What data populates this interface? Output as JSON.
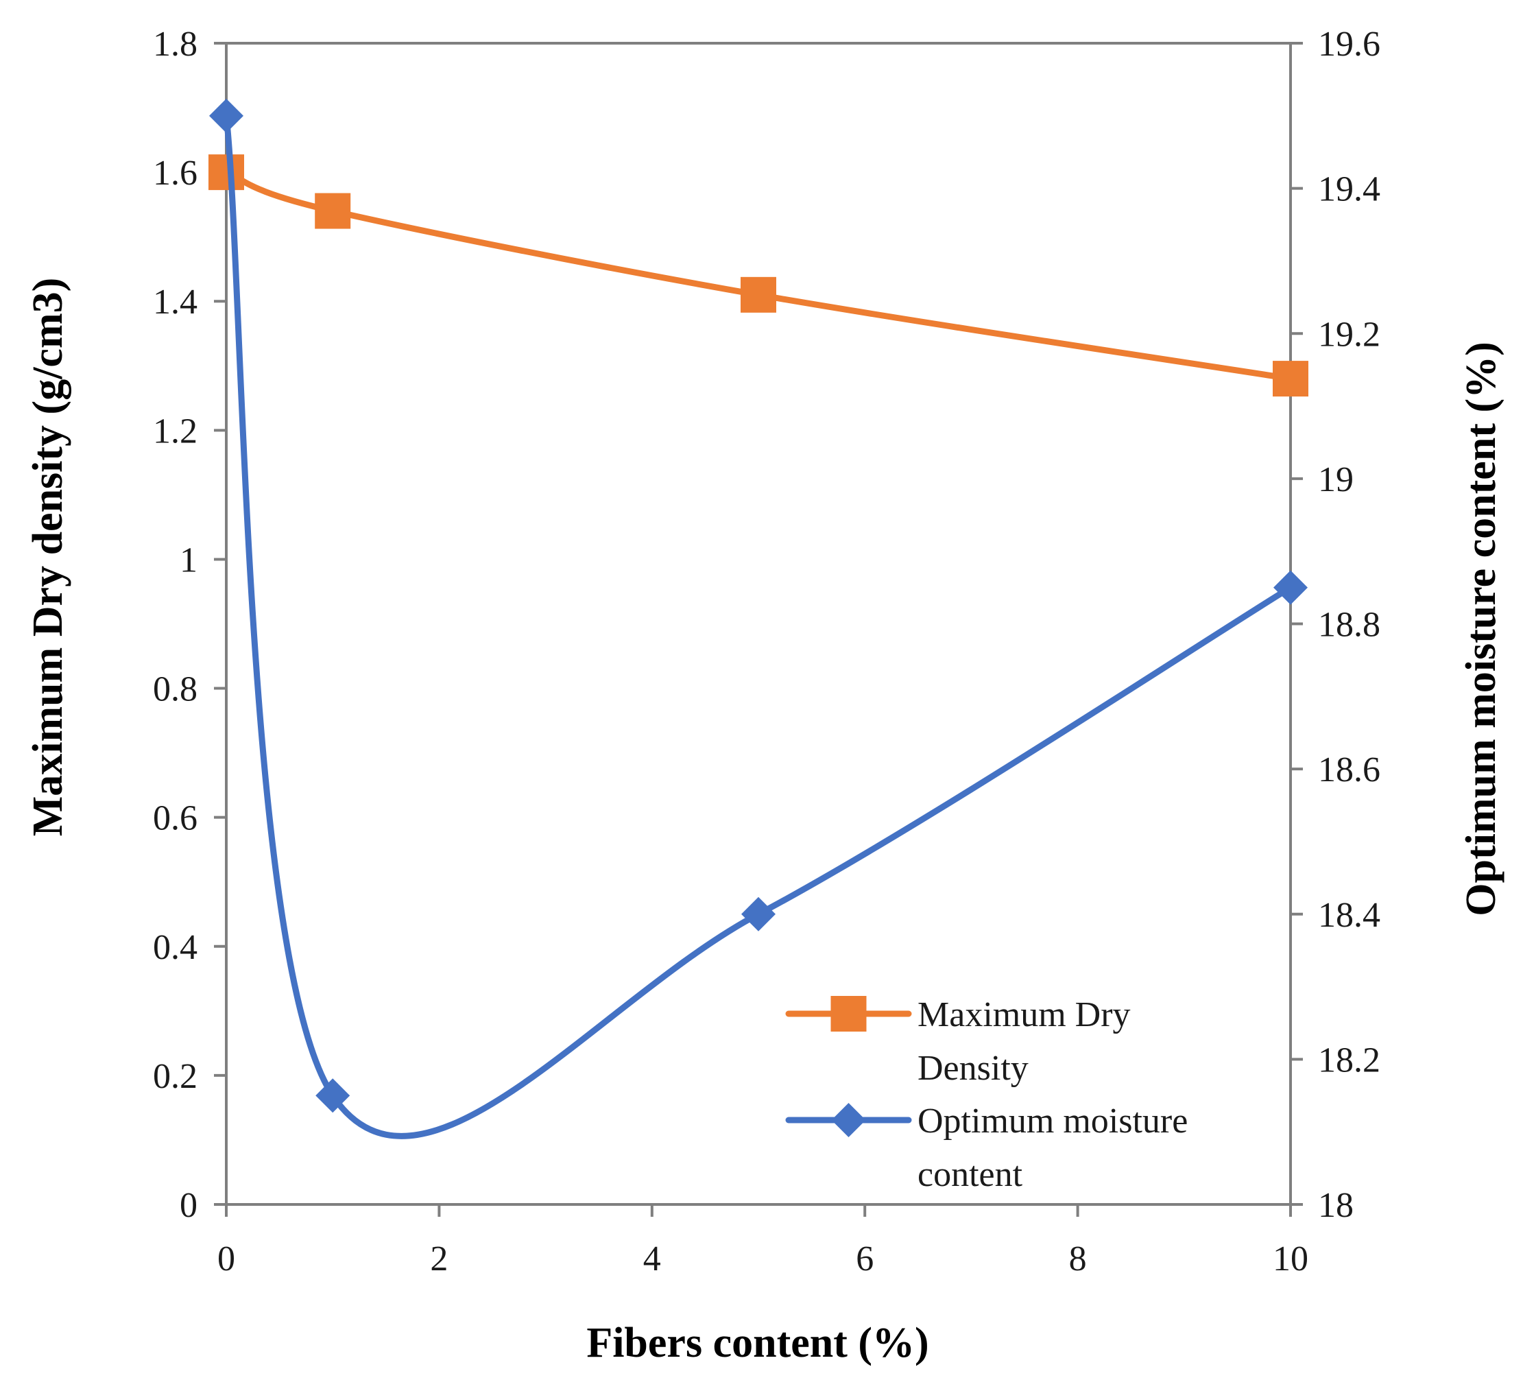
{
  "chart_data": {
    "type": "line",
    "title": "",
    "xlabel": "Fibers content (%)",
    "ylabel_left": "Maximum Dry density (g/cm3)",
    "ylabel_right": "Optimum moisture content (%)",
    "xlim": [
      0,
      10
    ],
    "ylim_left": [
      0,
      1.8
    ],
    "ylim_right": [
      18,
      19.6
    ],
    "x_ticks": [
      "0",
      "2",
      "4",
      "6",
      "8",
      "10"
    ],
    "y_left_ticks": [
      "0",
      "0.2",
      "0.4",
      "0.6",
      "0.8",
      "1",
      "1.2",
      "1.4",
      "1.6",
      "1.8"
    ],
    "y_right_ticks": [
      "18",
      "18.2",
      "18.4",
      "18.6",
      "18.8",
      "19",
      "19.2",
      "19.4",
      "19.6"
    ],
    "grid": false,
    "legend_position": "bottom-right",
    "series": [
      {
        "name": "Maximum Dry Density",
        "legend_lines": [
          "Maximum Dry",
          "Density"
        ],
        "axis": "left",
        "marker": "square",
        "color": "#ed7d31",
        "x": [
          0,
          1,
          5,
          10
        ],
        "values": [
          1.6,
          1.54,
          1.41,
          1.28
        ]
      },
      {
        "name": "Optimum moisture content",
        "legend_lines": [
          "Optimum moisture",
          "content"
        ],
        "axis": "right",
        "marker": "diamond",
        "color": "#4472c4",
        "x": [
          0,
          1,
          5,
          10
        ],
        "values": [
          19.5,
          18.15,
          18.4,
          18.85
        ]
      }
    ]
  }
}
